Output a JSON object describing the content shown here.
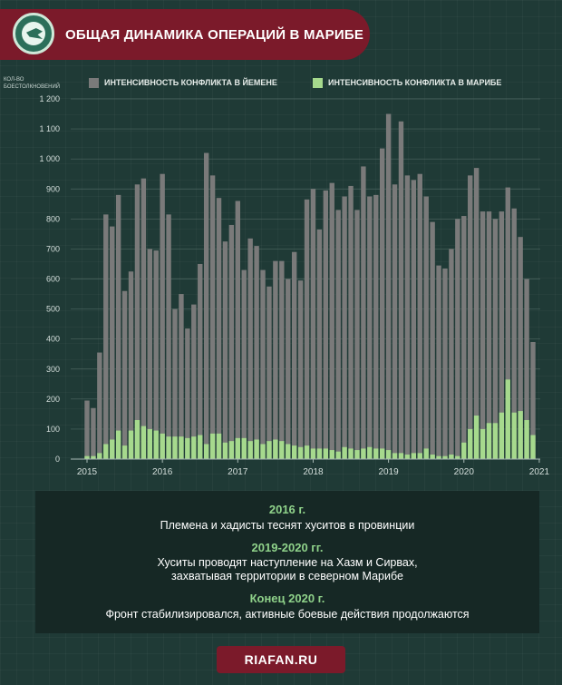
{
  "header": {
    "title": "ОБЩАЯ ДИНАМИКА ОПЕРАЦИЙ В МАРИБЕ"
  },
  "chart_data": {
    "type": "bar",
    "ylabel": "КОЛ-ВО БОЕСТОЛКНОВЕНИЙ",
    "ylim": [
      0,
      1200
    ],
    "yticks": [
      "0",
      "100",
      "200",
      "300",
      "400",
      "500",
      "600",
      "700",
      "800",
      "900",
      "1 000",
      "1 100",
      "1 200"
    ],
    "xticks": [
      "2015",
      "2016",
      "2017",
      "2018",
      "2019",
      "2020",
      "2021"
    ],
    "grid": true,
    "legend": "top",
    "colors": {
      "yemen": "#7a7a7a",
      "marib": "#a6d98d"
    },
    "series": [
      {
        "name": "ИНТЕНСИВНОСТЬ КОНФЛИКТА В ЙЕМЕНЕ",
        "values": [
          195,
          170,
          355,
          815,
          775,
          880,
          560,
          625,
          915,
          935,
          700,
          695,
          950,
          815,
          500,
          550,
          435,
          515,
          650,
          1020,
          945,
          870,
          725,
          780,
          860,
          630,
          735,
          710,
          630,
          575,
          660,
          660,
          600,
          690,
          595,
          865,
          900,
          765,
          895,
          920,
          830,
          875,
          910,
          830,
          975,
          875,
          880,
          1035,
          1150,
          915,
          1125,
          945,
          930,
          950,
          875,
          790,
          645,
          635,
          700,
          800,
          810,
          945,
          970,
          825,
          825,
          800,
          825,
          905,
          835,
          740,
          600,
          390
        ]
      },
      {
        "name": "ИНТЕНСИВНОСТЬ КОНФЛИКТА В МАРИБЕ",
        "values": [
          10,
          10,
          20,
          50,
          65,
          95,
          45,
          95,
          130,
          110,
          100,
          95,
          85,
          75,
          75,
          75,
          70,
          75,
          80,
          50,
          85,
          85,
          55,
          60,
          70,
          70,
          60,
          65,
          50,
          60,
          65,
          60,
          50,
          45,
          40,
          45,
          35,
          35,
          35,
          30,
          25,
          40,
          35,
          30,
          35,
          40,
          35,
          35,
          30,
          20,
          20,
          15,
          20,
          20,
          35,
          15,
          10,
          10,
          15,
          10,
          55,
          100,
          145,
          100,
          120,
          120,
          155,
          265,
          155,
          160,
          130,
          80
        ]
      }
    ]
  },
  "notes": [
    {
      "heading": "2016 г.",
      "text": "Племена и хадисты теснят хуситов в провинции"
    },
    {
      "heading": "2019-2020 гг.",
      "text": "Хуситы проводят наступление на Хазм и Сирвах, захватывая территории в северном Марибе"
    },
    {
      "heading": "Конец 2020 г.",
      "text": "Фронт стабилизировался, активные боевые действия продолжаются"
    }
  ],
  "footer": {
    "site": "RIAFAN.RU"
  }
}
